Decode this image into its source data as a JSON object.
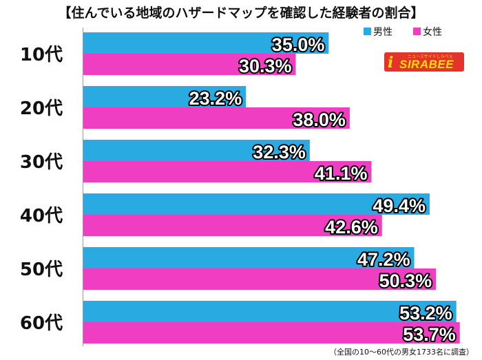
{
  "title": "【住んでいる地域のハザードマップを確認した経験者の割合】",
  "footnote": "（全国の10〜60代の男女1733名に調査）",
  "logo": {
    "name": "sirabee-logo",
    "word": "SIRABEE",
    "tagline": "ニュースサイトしらべぇ",
    "colors": {
      "bg": "#e4332b",
      "fg": "#ffe100"
    }
  },
  "chart_data": {
    "type": "bar",
    "orientation": "horizontal",
    "categories": [
      "10代",
      "20代",
      "30代",
      "40代",
      "50代",
      "60代"
    ],
    "series": [
      {
        "name": "男性",
        "color": "#29abe2",
        "values": [
          35.0,
          23.2,
          32.3,
          49.4,
          47.2,
          53.2
        ],
        "labels": [
          "35.0%",
          "23.2%",
          "32.3%",
          "49.4%",
          "47.2%",
          "53.2%"
        ]
      },
      {
        "name": "女性",
        "color": "#f03ec3",
        "values": [
          30.3,
          38.0,
          41.1,
          42.6,
          50.3,
          53.7
        ],
        "labels": [
          "30.3%",
          "38.0%",
          "41.1%",
          "42.6%",
          "50.3%",
          "53.7%"
        ]
      }
    ],
    "xlim": [
      0,
      55
    ],
    "grid": false,
    "legend_position": "top-right"
  }
}
